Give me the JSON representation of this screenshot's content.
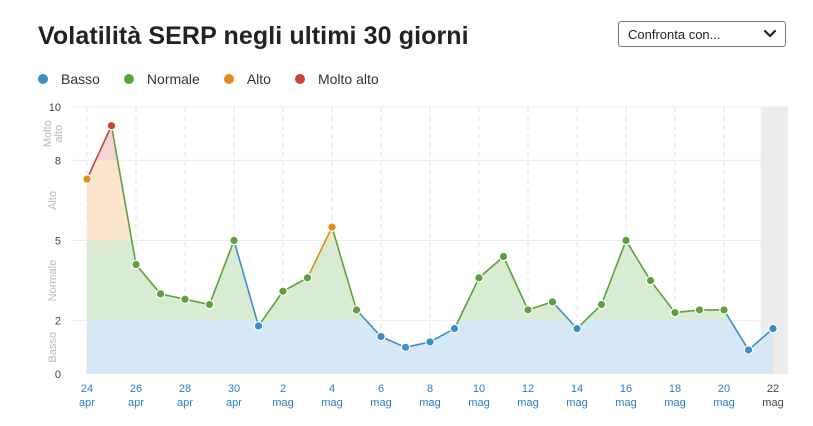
{
  "title": "Volatilità SERP negli ultimi 30 giorni",
  "compare": {
    "label": "Confronta con...",
    "icon": "chevron-down-icon"
  },
  "legend": [
    {
      "label": "Basso",
      "color": "#3a8fc7"
    },
    {
      "label": "Normale",
      "color": "#5da13d"
    },
    {
      "label": "Alto",
      "color": "#e08c1a"
    },
    {
      "label": "Molto alto",
      "color": "#c8443a"
    }
  ],
  "chart_data": {
    "type": "line",
    "title": "Volatilità SERP negli ultimi 30 giorni",
    "ylim": [
      0,
      10
    ],
    "yticks": [
      0,
      2,
      5,
      8,
      10
    ],
    "bands": [
      {
        "label": "Basso",
        "from": 0,
        "to": 2,
        "color": "#d6e8f5"
      },
      {
        "label": "Normale",
        "from": 2,
        "to": 5,
        "color": "#d9ecd3"
      },
      {
        "label": "Alto",
        "from": 5,
        "to": 8,
        "color": "#fbe5cd"
      },
      {
        "label": "Molto alto",
        "from": 8,
        "to": 10,
        "color": "#f5d4d1"
      }
    ],
    "band_labels": [
      "Basso",
      "Normale",
      "Alto",
      "Molto alto"
    ],
    "x_tick_labels": [
      [
        "24",
        "apr"
      ],
      [
        "26",
        "apr"
      ],
      [
        "28",
        "apr"
      ],
      [
        "30",
        "apr"
      ],
      [
        "2",
        "mag"
      ],
      [
        "4",
        "mag"
      ],
      [
        "6",
        "mag"
      ],
      [
        "8",
        "mag"
      ],
      [
        "10",
        "mag"
      ],
      [
        "12",
        "mag"
      ],
      [
        "14",
        "mag"
      ],
      [
        "16",
        "mag"
      ],
      [
        "18",
        "mag"
      ],
      [
        "20",
        "mag"
      ],
      [
        "22",
        "mag"
      ]
    ],
    "x": [
      "24 apr",
      "25 apr",
      "26 apr",
      "27 apr",
      "28 apr",
      "29 apr",
      "30 apr",
      "1 mag",
      "2 mag",
      "3 mag",
      "4 mag",
      "5 mag",
      "6 mag",
      "7 mag",
      "8 mag",
      "9 mag",
      "10 mag",
      "11 mag",
      "12 mag",
      "13 mag",
      "14 mag",
      "15 mag",
      "16 mag",
      "17 mag",
      "18 mag",
      "19 mag",
      "20 mag",
      "21 mag",
      "22 mag"
    ],
    "values": [
      7.3,
      9.3,
      4.1,
      3.0,
      2.8,
      2.6,
      5.0,
      1.8,
      3.1,
      3.6,
      5.5,
      2.4,
      1.4,
      1.0,
      1.2,
      1.7,
      3.6,
      4.4,
      2.4,
      2.7,
      1.7,
      2.6,
      5.0,
      3.5,
      2.3,
      2.4,
      2.4,
      0.9,
      1.7
    ],
    "levels": [
      "Alto",
      "Molto alto",
      "Normale",
      "Normale",
      "Normale",
      "Normale",
      "Normale",
      "Basso",
      "Normale",
      "Normale",
      "Alto",
      "Normale",
      "Basso",
      "Basso",
      "Basso",
      "Basso",
      "Normale",
      "Normale",
      "Normale",
      "Normale",
      "Basso",
      "Normale",
      "Normale",
      "Normale",
      "Normale",
      "Normale",
      "Normale",
      "Basso",
      "Basso"
    ],
    "highlight_last_day": true
  }
}
